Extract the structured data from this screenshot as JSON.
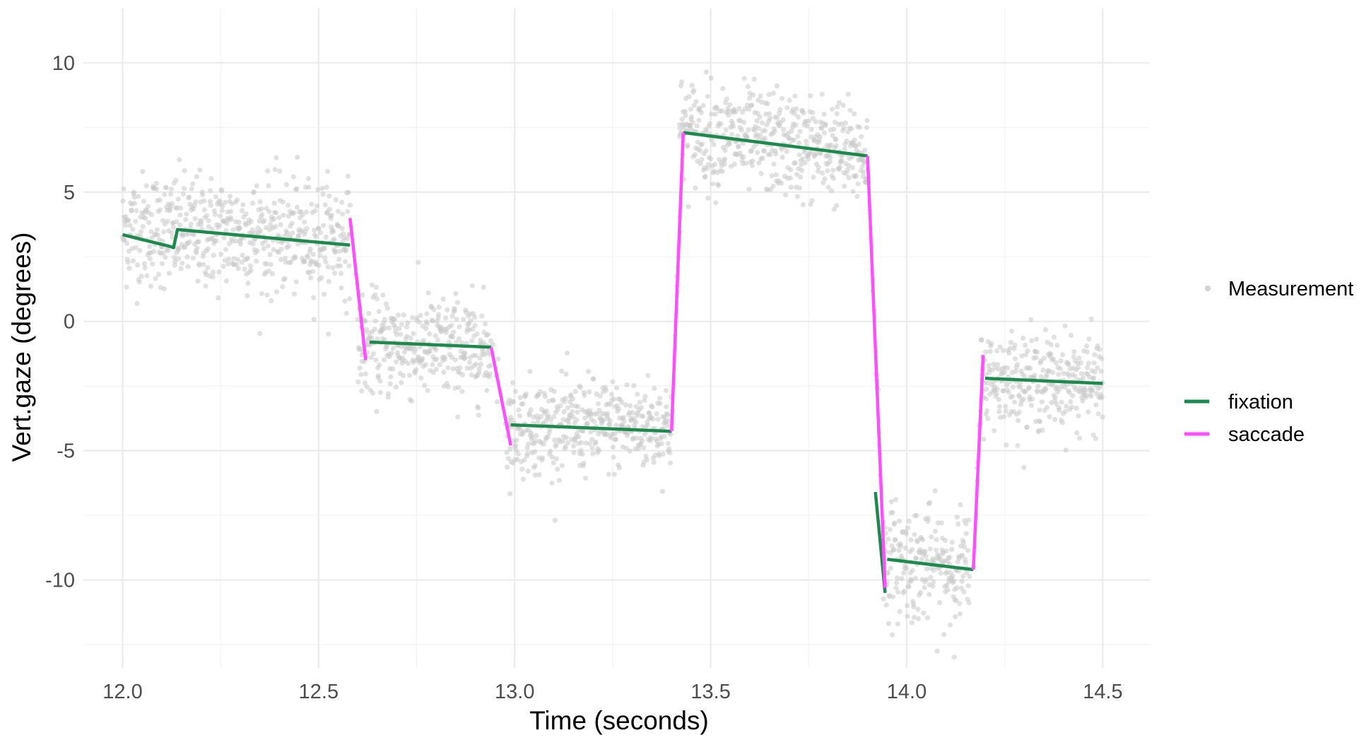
{
  "chart_data": {
    "type": "line",
    "xlabel": "Time (seconds)",
    "ylabel": "Vert.gaze (degrees)",
    "xlim": [
      11.9,
      14.62
    ],
    "ylim": [
      -13.4,
      12.1
    ],
    "x_ticks": [
      12.0,
      12.5,
      13.0,
      13.5,
      14.0,
      14.5
    ],
    "x_tick_labels": [
      "12.0",
      "12.5",
      "13.0",
      "13.5",
      "14.0",
      "14.5"
    ],
    "y_ticks": [
      -10,
      -5,
      0,
      5,
      10
    ],
    "y_tick_labels": [
      "-10",
      "-5",
      "0",
      "5",
      "10"
    ],
    "grid": true,
    "legend_position": "right",
    "legend": {
      "measurement_label": "Measurement",
      "fixation_label": "fixation",
      "saccade_label": "saccade"
    },
    "colors": {
      "measurement": "#c8c8c8",
      "fixation": "#1b8a4c",
      "saccade": "#ff4dff"
    },
    "measurement_levels": [
      {
        "x_start": 12.0,
        "x_end": 12.58,
        "y_start": 3.6,
        "y_end": 3.2,
        "spread": 1.1
      },
      {
        "x_start": 12.6,
        "x_end": 12.94,
        "y_start": -0.9,
        "y_end": -1.1,
        "spread": 1.0
      },
      {
        "x_start": 12.98,
        "x_end": 13.4,
        "y_start": -4.1,
        "y_end": -4.0,
        "spread": 0.9
      },
      {
        "x_start": 13.42,
        "x_end": 13.9,
        "y_start": 7.4,
        "y_end": 6.4,
        "spread": 1.0
      },
      {
        "x_start": 13.94,
        "x_end": 14.16,
        "y_start": -9.2,
        "y_end": -9.6,
        "spread": 1.1
      },
      {
        "x_start": 14.19,
        "x_end": 14.5,
        "y_start": -2.2,
        "y_end": -2.4,
        "spread": 0.9
      }
    ],
    "series": [
      {
        "name": "fixation",
        "segments": [
          [
            [
              12.0,
              3.35
            ],
            [
              12.12,
              2.9
            ],
            [
              12.13,
              2.85
            ],
            [
              12.14,
              3.55
            ],
            [
              12.58,
              2.95
            ]
          ],
          [
            [
              12.63,
              -0.8
            ],
            [
              12.94,
              -1.0
            ]
          ],
          [
            [
              12.99,
              -4.0
            ],
            [
              13.4,
              -4.25
            ]
          ],
          [
            [
              13.43,
              7.3
            ],
            [
              13.9,
              6.4
            ]
          ],
          [
            [
              13.92,
              -6.6
            ],
            [
              13.945,
              -10.5
            ]
          ],
          [
            [
              13.95,
              -9.2
            ],
            [
              14.17,
              -9.6
            ]
          ],
          [
            [
              14.2,
              -2.2
            ],
            [
              14.5,
              -2.4
            ]
          ]
        ]
      },
      {
        "name": "saccade",
        "segments": [
          [
            [
              12.58,
              4.0
            ],
            [
              12.62,
              -1.5
            ]
          ],
          [
            [
              12.94,
              -1.0
            ],
            [
              12.99,
              -4.8
            ]
          ],
          [
            [
              13.4,
              -4.25
            ],
            [
              13.43,
              7.3
            ]
          ],
          [
            [
              13.9,
              6.4
            ],
            [
              13.945,
              -10.3
            ]
          ],
          [
            [
              14.17,
              -9.6
            ],
            [
              14.195,
              -1.3
            ]
          ]
        ]
      }
    ]
  }
}
